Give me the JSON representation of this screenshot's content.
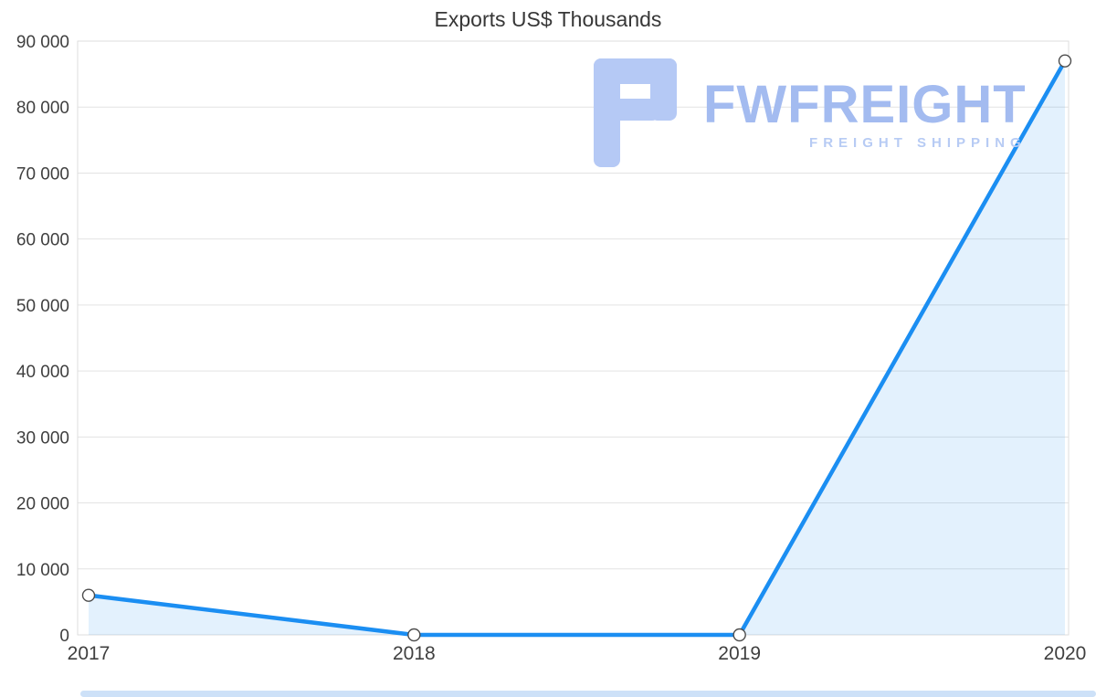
{
  "title": "Exports US$ Thousands",
  "watermark": {
    "brand": "FWFREIGHT",
    "tagline": "FREIGHT SHIPPING"
  },
  "chart_data": {
    "type": "area",
    "title": "Exports US$ Thousands",
    "categories": [
      "2017",
      "2018",
      "2019",
      "2020"
    ],
    "series": [
      {
        "name": "Exports US$ Thousands",
        "values": [
          6000,
          0,
          0,
          87000
        ]
      }
    ],
    "ylim": [
      0,
      90000
    ],
    "yticks": [
      0,
      10000,
      20000,
      30000,
      40000,
      50000,
      60000,
      70000,
      80000,
      90000
    ],
    "ytick_labels": [
      "0",
      "10 000",
      "20 000",
      "30 000",
      "40 000",
      "50 000",
      "60 000",
      "70 000",
      "80 000",
      "90 000"
    ],
    "xlabel": "",
    "ylabel": "",
    "grid": true,
    "legend": "none",
    "colors": {
      "line": "#1b8ef2",
      "area_fill": "rgba(27, 142, 242, 0.12)",
      "marker_fill": "#ffffff",
      "marker_stroke": "#4d4d4d",
      "grid": "#e3e3e3",
      "plot_border": "#dedede",
      "axis_line": "#c6c6c6",
      "axis_text": "#3f3f3f",
      "watermark": "#b5c9f5"
    }
  }
}
